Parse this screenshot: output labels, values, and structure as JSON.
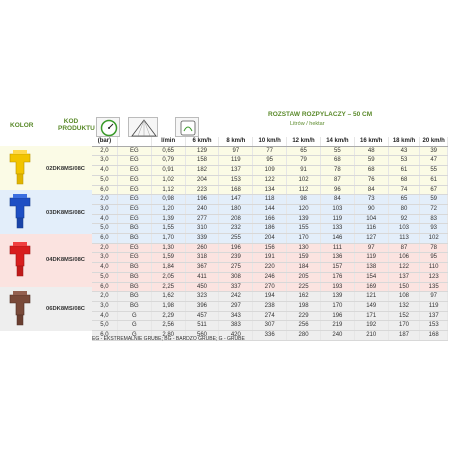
{
  "header": {
    "kolor": "KOLOR",
    "kod": "KOD PRODUKTU",
    "rozstaw": "ROZSTAW ROZPYLACZY – 50 CM",
    "unit": "Litrów / hektar"
  },
  "columns": [
    "(bar)",
    "",
    "l/min",
    "6 km/h",
    "8 km/h",
    "10 km/h",
    "12 km/h",
    "14 km/h",
    "16 km/h",
    "18 km/h",
    "20 km/h"
  ],
  "groups": [
    {
      "code": "02DK8MS/08C",
      "color": "#f2c400",
      "rows": [
        [
          "2,0",
          "EG",
          "0,65",
          "129",
          "97",
          "77",
          "65",
          "55",
          "48",
          "43",
          "39"
        ],
        [
          "3,0",
          "EG",
          "0,79",
          "158",
          "119",
          "95",
          "79",
          "68",
          "59",
          "53",
          "47"
        ],
        [
          "4,0",
          "EG",
          "0,91",
          "182",
          "137",
          "109",
          "91",
          "78",
          "68",
          "61",
          "55"
        ],
        [
          "5,0",
          "EG",
          "1,02",
          "204",
          "153",
          "122",
          "102",
          "87",
          "76",
          "68",
          "61"
        ],
        [
          "6,0",
          "EG",
          "1,12",
          "223",
          "168",
          "134",
          "112",
          "96",
          "84",
          "74",
          "67"
        ]
      ]
    },
    {
      "code": "03DK8MS/08C",
      "color": "#1e4fc4",
      "rows": [
        [
          "2,0",
          "EG",
          "0,98",
          "196",
          "147",
          "118",
          "98",
          "84",
          "73",
          "65",
          "59"
        ],
        [
          "3,0",
          "EG",
          "1,20",
          "240",
          "180",
          "144",
          "120",
          "103",
          "90",
          "80",
          "72"
        ],
        [
          "4,0",
          "EG",
          "1,39",
          "277",
          "208",
          "166",
          "139",
          "119",
          "104",
          "92",
          "83"
        ],
        [
          "5,0",
          "BG",
          "1,55",
          "310",
          "232",
          "186",
          "155",
          "133",
          "116",
          "103",
          "93"
        ],
        [
          "6,0",
          "BG",
          "1,70",
          "339",
          "255",
          "204",
          "170",
          "146",
          "127",
          "113",
          "102"
        ]
      ]
    },
    {
      "code": "04DK8MS/08C",
      "color": "#d81e1e",
      "rows": [
        [
          "2,0",
          "EG",
          "1,30",
          "260",
          "196",
          "156",
          "130",
          "111",
          "97",
          "87",
          "78"
        ],
        [
          "3,0",
          "EG",
          "1,59",
          "318",
          "239",
          "191",
          "159",
          "136",
          "119",
          "106",
          "95"
        ],
        [
          "4,0",
          "BG",
          "1,84",
          "367",
          "275",
          "220",
          "184",
          "157",
          "138",
          "122",
          "110"
        ],
        [
          "5,0",
          "BG",
          "2,05",
          "411",
          "308",
          "246",
          "205",
          "176",
          "154",
          "137",
          "123"
        ],
        [
          "6,0",
          "BG",
          "2,25",
          "450",
          "337",
          "270",
          "225",
          "193",
          "169",
          "150",
          "135"
        ]
      ]
    },
    {
      "code": "06DK8MS/08C",
      "color": "#7a4a3a",
      "rows": [
        [
          "2,0",
          "BG",
          "1,62",
          "323",
          "242",
          "194",
          "162",
          "139",
          "121",
          "108",
          "97"
        ],
        [
          "3,0",
          "BG",
          "1,98",
          "396",
          "297",
          "238",
          "198",
          "170",
          "149",
          "132",
          "119"
        ],
        [
          "4,0",
          "G",
          "2,29",
          "457",
          "343",
          "274",
          "229",
          "196",
          "171",
          "152",
          "137"
        ],
        [
          "5,0",
          "G",
          "2,56",
          "511",
          "383",
          "307",
          "256",
          "219",
          "192",
          "170",
          "153"
        ],
        [
          "6,0",
          "G",
          "2,80",
          "560",
          "420",
          "336",
          "280",
          "240",
          "210",
          "187",
          "168"
        ]
      ]
    }
  ],
  "legend": "EG - EKSTREMALNIE GRUBE; BG - BARDZO GRUBE; G - GRUBE"
}
